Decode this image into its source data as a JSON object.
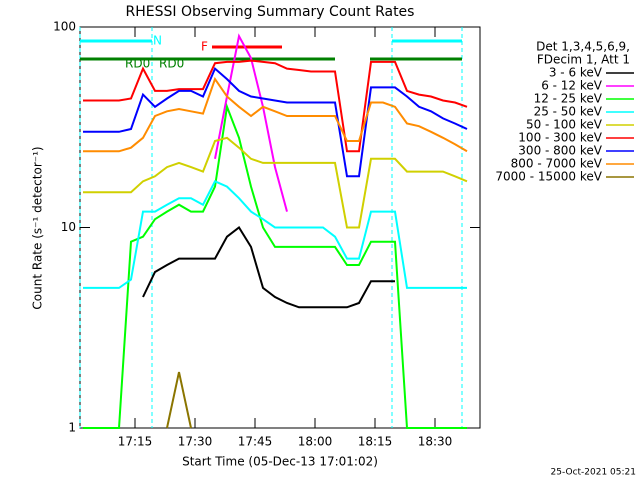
{
  "chart_data": {
    "type": "line",
    "title": "RHESSI Observing Summary Count Rates",
    "xlabel": "Start Time (05-Dec-13 17:01:02)",
    "ylabel": "Count Rate (s⁻¹ detector⁻¹)",
    "timestamp": "25-Oct-2021 05:21",
    "log_y": true,
    "ylim": [
      1,
      100
    ],
    "yticks": [
      1,
      10,
      100
    ],
    "xlim": [
      1.25,
      101.25
    ],
    "xticks": [
      {
        "value": 15,
        "label": "17:15"
      },
      {
        "value": 30,
        "label": "17:30"
      },
      {
        "value": 45,
        "label": "17:45"
      },
      {
        "value": 60,
        "label": "18:00"
      },
      {
        "value": 75,
        "label": "18:15"
      },
      {
        "value": 90,
        "label": "18:30"
      }
    ],
    "legend_title": [
      "Det 1,3,4,5,6,9,",
      "FDecim 1, Att 1"
    ],
    "flags": [
      {
        "label": "N",
        "color": "#00ffff",
        "intervals": [
          [
            1.25,
            19.25
          ],
          [
            79.25,
            96.75
          ]
        ],
        "label_x": [
          19.5
        ]
      },
      {
        "label": "F",
        "color": "#ff0000",
        "intervals": [
          [
            34.25,
            51.75
          ]
        ],
        "label_x": [
          31.5
        ]
      },
      {
        "label": "RD0",
        "color": "#008000",
        "intervals": [
          [
            1.25,
            65
          ],
          [
            73.75,
            96.75
          ]
        ],
        "label_x": [
          12.5,
          21
        ]
      }
    ],
    "x": [
      2,
      5,
      8,
      11,
      14,
      17,
      20,
      23,
      26,
      29,
      32,
      35,
      38,
      41,
      44,
      47,
      50,
      53,
      56,
      59,
      62,
      65,
      68,
      71,
      74,
      77,
      80,
      83,
      86,
      89,
      92,
      95,
      98
    ],
    "series": [
      {
        "name": "3 - 6 keV",
        "color": "#000000",
        "values": [
          null,
          null,
          null,
          null,
          null,
          4.5,
          6,
          6.5,
          7,
          7,
          7,
          7,
          9,
          10,
          8,
          5,
          4.5,
          4.2,
          4,
          4,
          4,
          4,
          4,
          4.2,
          5.4,
          5.4,
          5.4,
          null,
          null,
          null,
          null,
          null,
          null
        ]
      },
      {
        "name": "6 - 12 keV",
        "color": "#ff00ff",
        "values": [
          null,
          null,
          null,
          null,
          null,
          null,
          null,
          null,
          null,
          null,
          null,
          22,
          45,
          90,
          70,
          40,
          20,
          12,
          null,
          null,
          null,
          null,
          null,
          null,
          null,
          null,
          null,
          null,
          null,
          null,
          null,
          null,
          null
        ]
      },
      {
        "name": "12 - 25 keV",
        "color": "#00ff00",
        "values": [
          1,
          1,
          1,
          1,
          8.5,
          9,
          11,
          12,
          13,
          12,
          12,
          16,
          40,
          28,
          16,
          10,
          8,
          8,
          8,
          8,
          8,
          8,
          6.5,
          6.5,
          8.5,
          8.5,
          8.5,
          1,
          1,
          1,
          1,
          1,
          1
        ]
      },
      {
        "name": "25 - 50 keV",
        "color": "#00ffff",
        "values": [
          5,
          5,
          5,
          5,
          5.5,
          12,
          12,
          13,
          14,
          14,
          13,
          17,
          16,
          14,
          12,
          11,
          10,
          10,
          10,
          10,
          10,
          9,
          7,
          7,
          12,
          12,
          12,
          5,
          5,
          5,
          5,
          5,
          5
        ]
      },
      {
        "name": "50 - 100 keV",
        "color": "#d0d000",
        "values": [
          15,
          15,
          15,
          15,
          15,
          17,
          18,
          20,
          21,
          20,
          19,
          27,
          28,
          25,
          22,
          21,
          21,
          21,
          21,
          21,
          21,
          21,
          10,
          10,
          22,
          22,
          22,
          19,
          19,
          19,
          19,
          18,
          17
        ]
      },
      {
        "name": "100 - 300 keV",
        "color": "#ff0000",
        "values": [
          43,
          43,
          43,
          43,
          44,
          62,
          48,
          48,
          49,
          49,
          49,
          66,
          67,
          67,
          68,
          67,
          66,
          62,
          61,
          60,
          60,
          60,
          24,
          24,
          67,
          67,
          67,
          48,
          46,
          45,
          43,
          42,
          40
        ]
      },
      {
        "name": "300 - 800 keV",
        "color": "#0000ff",
        "values": [
          30,
          30,
          30,
          30,
          31,
          46,
          40,
          44,
          48,
          48,
          45,
          62,
          55,
          48,
          45,
          44,
          43,
          42,
          42,
          42,
          42,
          42,
          18,
          18,
          50,
          50,
          50,
          45,
          40,
          38,
          35,
          33,
          31
        ]
      },
      {
        "name": "800 - 7000 keV",
        "color": "#ff8c00",
        "values": [
          24,
          24,
          24,
          24,
          25,
          28,
          36,
          38,
          39,
          38,
          37,
          55,
          45,
          40,
          36,
          40,
          38,
          36,
          36,
          36,
          36,
          36,
          27,
          27,
          42,
          42,
          40,
          33,
          32,
          30,
          28,
          26,
          24
        ]
      },
      {
        "name": "7000 - 15000 keV",
        "color": "#8b7500",
        "values": [
          null,
          null,
          null,
          null,
          null,
          null,
          null,
          1,
          1.9,
          1,
          null,
          null,
          null,
          null,
          null,
          null,
          null,
          null,
          null,
          null,
          null,
          null,
          null,
          null,
          null,
          null,
          null,
          null,
          null,
          null,
          null,
          null,
          null
        ]
      }
    ]
  }
}
